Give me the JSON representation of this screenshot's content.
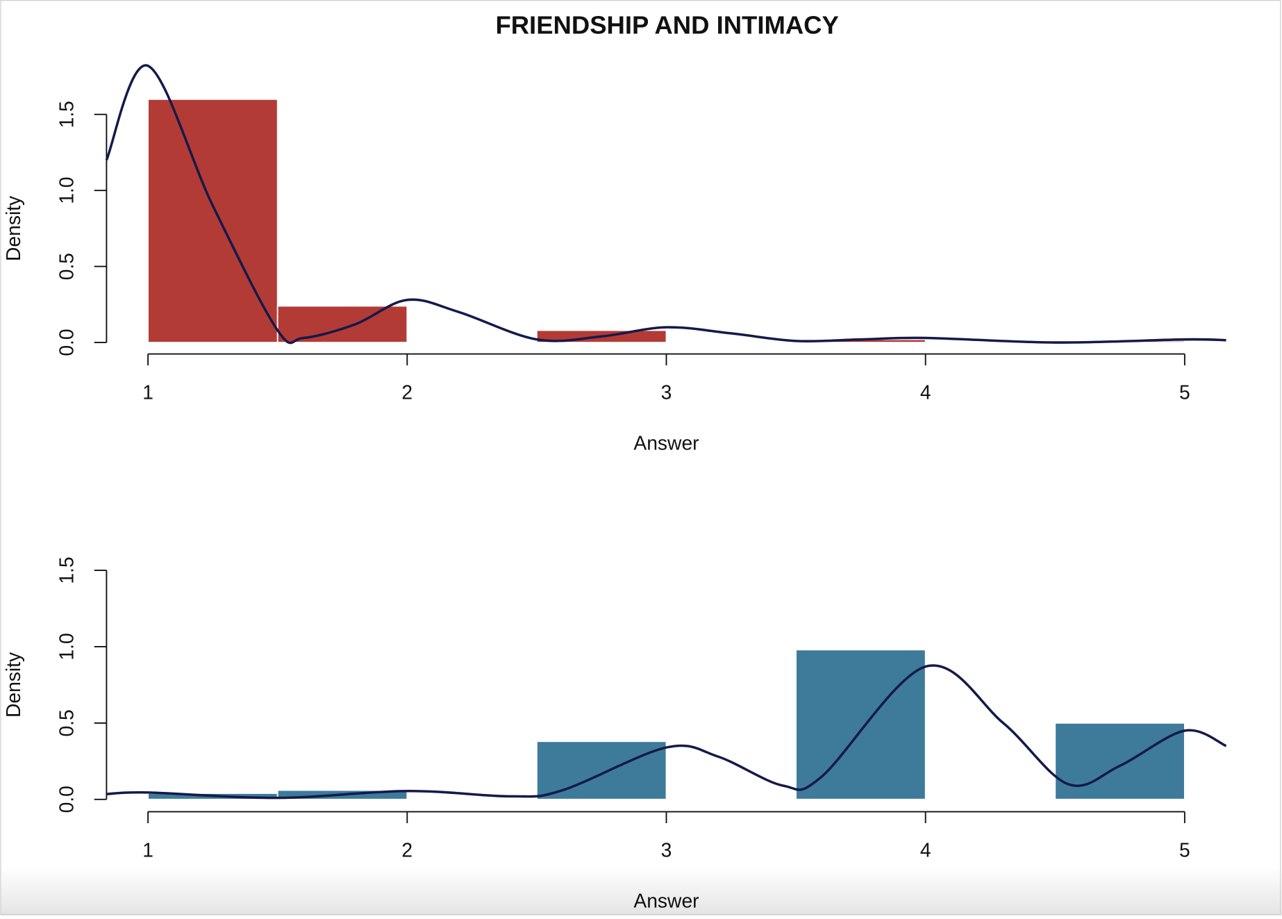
{
  "chart_data": [
    {
      "type": "histogram",
      "title": "FRIENDSHIP AND INTIMACY",
      "xlabel": "Answer",
      "ylabel": "Density",
      "bins": [
        1,
        1.5,
        2,
        2.5,
        3,
        3.5,
        4,
        4.5,
        5
      ],
      "values": [
        1.6,
        0.24,
        0,
        0.08,
        0,
        0.02,
        0,
        0.01
      ],
      "color": "#b33b36",
      "density": {
        "color": "#141a4a",
        "x": [
          0.84,
          1.0,
          1.25,
          1.5,
          1.6,
          1.8,
          2.0,
          2.2,
          2.5,
          2.75,
          3.0,
          3.25,
          3.5,
          3.75,
          4.0,
          4.5,
          5.0,
          5.16
        ],
        "values": [
          1.2,
          1.82,
          0.9,
          0.08,
          0.03,
          0.12,
          0.28,
          0.2,
          0.02,
          0.04,
          0.1,
          0.06,
          0.01,
          0.02,
          0.03,
          0.0,
          0.02,
          0.015
        ]
      },
      "xlim": [
        0.84,
        5.16
      ],
      "ylim": [
        -0.07,
        1.9
      ],
      "xticks": [
        1,
        2,
        3,
        4,
        5
      ],
      "yticks": [
        {
          "value": 0,
          "label": "0.0"
        },
        {
          "value": 0.5,
          "label": "0.5"
        },
        {
          "value": 1,
          "label": "1.0"
        },
        {
          "value": 1.5,
          "label": "1.5"
        }
      ]
    },
    {
      "type": "histogram",
      "xlabel": "Answer",
      "ylabel": "Density",
      "bins": [
        1,
        1.5,
        2,
        2.5,
        3,
        3.5,
        4,
        4.5,
        5
      ],
      "values": [
        0.04,
        0.06,
        0,
        0.38,
        0,
        0.98,
        0,
        0.5
      ],
      "color": "#3e7b9a",
      "density": {
        "color": "#141a4a",
        "x": [
          0.84,
          1.0,
          1.5,
          2.0,
          2.4,
          2.6,
          3.0,
          3.2,
          3.45,
          3.6,
          4.0,
          4.3,
          4.55,
          4.75,
          5.0,
          5.16
        ],
        "values": [
          0.035,
          0.045,
          0.01,
          0.055,
          0.02,
          0.06,
          0.34,
          0.28,
          0.09,
          0.15,
          0.87,
          0.5,
          0.1,
          0.22,
          0.45,
          0.35
        ]
      },
      "xlim": [
        0.84,
        5.16
      ],
      "ylim": [
        -0.07,
        1.9
      ],
      "xticks": [
        1,
        2,
        3,
        4,
        5
      ],
      "yticks": [
        {
          "value": 0,
          "label": "0.0"
        },
        {
          "value": 0.5,
          "label": "0.5"
        },
        {
          "value": 1,
          "label": "1.0"
        },
        {
          "value": 1.5,
          "label": "1.5"
        }
      ]
    }
  ]
}
